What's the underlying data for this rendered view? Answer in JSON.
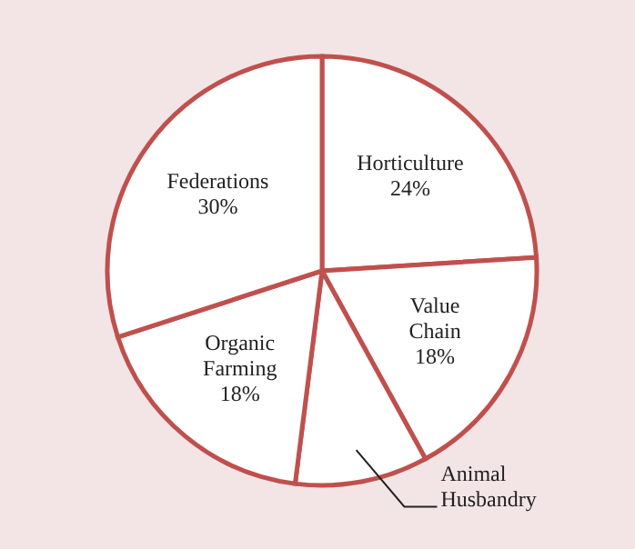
{
  "chart_data": {
    "type": "pie",
    "categories": [
      "Horticulture",
      "Value Chain",
      "Animal Husbandry",
      "Organic Farming",
      "Federations"
    ],
    "values": [
      24,
      18,
      10,
      18,
      30
    ],
    "colors": [
      "#ffffff",
      "#ffffff",
      "#ffffff",
      "#ffffff",
      "#ffffff"
    ],
    "value_labels": [
      "24%",
      "18%",
      null,
      "18%",
      "30%"
    ]
  }
}
